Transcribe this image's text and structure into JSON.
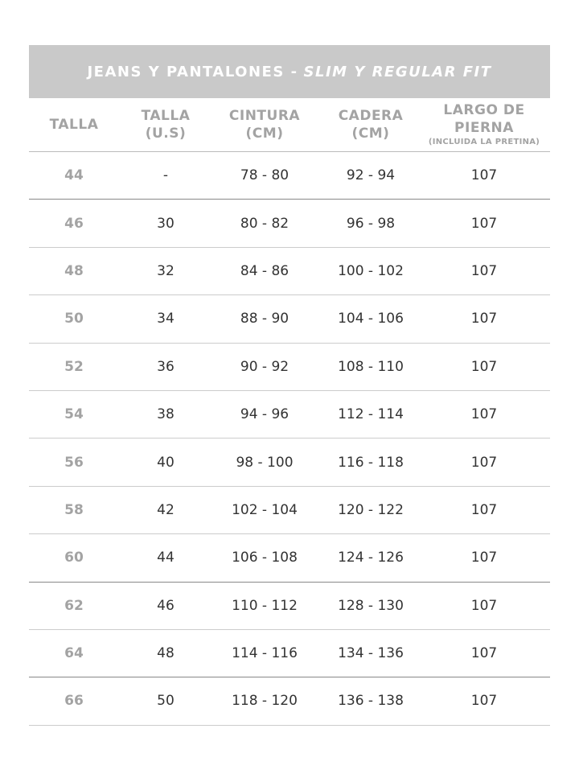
{
  "title": {
    "main": "JEANS Y PANTALONES -",
    "italic": "SLIM Y REGULAR FIT"
  },
  "colors": {
    "header_bg": "#c9c9c9",
    "header_text": "#ffffff",
    "label_gray": "#a3a3a3",
    "value_text": "#333333"
  },
  "columns": [
    {
      "line1": "TALLA",
      "line2": "",
      "note": ""
    },
    {
      "line1": "TALLA",
      "line2": "(U.S)",
      "note": ""
    },
    {
      "line1": "CINTURA",
      "line2": "(CM)",
      "note": ""
    },
    {
      "line1": "CADERA",
      "line2": "(CM)",
      "note": ""
    },
    {
      "line1": "LARGO DE",
      "line2": "PIERNA",
      "note": "(INCLUIDA LA PRETINA)"
    }
  ],
  "rows": [
    [
      "44",
      "-",
      "78 - 80",
      "92 - 94",
      "107"
    ],
    [
      "46",
      "30",
      "80 - 82",
      "96 - 98",
      "107"
    ],
    [
      "48",
      "32",
      "84 - 86",
      "100 - 102",
      "107"
    ],
    [
      "50",
      "34",
      "88 - 90",
      "104 - 106",
      "107"
    ],
    [
      "52",
      "36",
      "90 - 92",
      "108 - 110",
      "107"
    ],
    [
      "54",
      "38",
      "94 - 96",
      "112 - 114",
      "107"
    ],
    [
      "56",
      "40",
      "98 - 100",
      "116 - 118",
      "107"
    ],
    [
      "58",
      "42",
      "102 - 104",
      "120 - 122",
      "107"
    ],
    [
      "60",
      "44",
      "106 - 108",
      "124 - 126",
      "107"
    ],
    [
      "62",
      "46",
      "110 - 112",
      "128 - 130",
      "107"
    ],
    [
      "64",
      "48",
      "114 - 116",
      "134 - 136",
      "107"
    ],
    [
      "66",
      "50",
      "118 - 120",
      "136 - 138",
      "107"
    ]
  ]
}
